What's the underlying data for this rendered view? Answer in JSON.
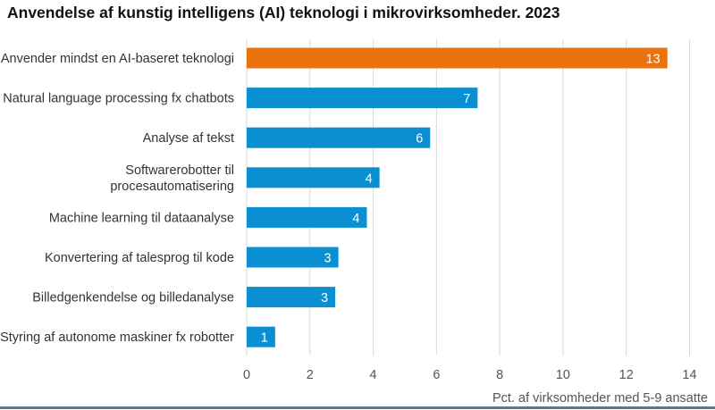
{
  "chart_data": {
    "type": "bar",
    "orientation": "horizontal",
    "title": "Anvendelse af kunstig intelligens (AI) teknologi i mikrovirksomheder. 2023",
    "xlabel": "Pct. af virksomheder med 5-9 ansatte",
    "ylabel": "",
    "xlim": [
      0,
      14
    ],
    "xticks": [
      0,
      2,
      4,
      6,
      8,
      10,
      12,
      14
    ],
    "grid": "vertical",
    "categories": [
      [
        "Anvender mindst en AI-baseret teknologi"
      ],
      [
        "Natural language processing fx chatbots"
      ],
      [
        "Analyse af tekst"
      ],
      [
        "Softwarerobotter til",
        "procesautomatisering"
      ],
      [
        "Machine learning til dataanalyse"
      ],
      [
        "Konvertering af talesprog til kode"
      ],
      [
        "Billedgenkendelse og billedanalyse"
      ],
      [
        "Styring af autonome maskiner fx robotter"
      ]
    ],
    "values": [
      13.3,
      7.3,
      5.8,
      4.2,
      3.8,
      2.9,
      2.8,
      0.9
    ],
    "data_labels": [
      "13",
      "7",
      "6",
      "4",
      "4",
      "3",
      "3",
      "1"
    ],
    "colors": {
      "highlight": "#e8730f",
      "default": "#0b8fd3",
      "grid": "#d9d9d9",
      "rule": "#5f7687"
    },
    "highlight_index": 0
  }
}
